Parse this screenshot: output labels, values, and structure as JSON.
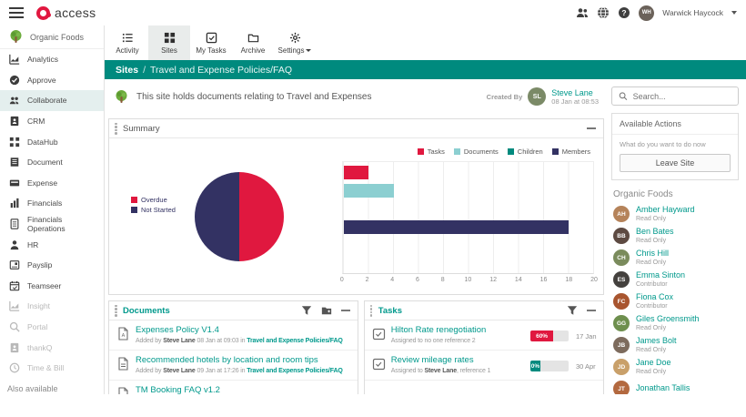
{
  "topbar": {
    "logo_text": "access",
    "user_name": "Warwick Haycock"
  },
  "org": {
    "name": "Organic Foods"
  },
  "sidebar": {
    "items": [
      {
        "label": "Analytics"
      },
      {
        "label": "Approve"
      },
      {
        "label": "Collaborate",
        "active": true
      },
      {
        "label": "CRM"
      },
      {
        "label": "DataHub"
      },
      {
        "label": "Document"
      },
      {
        "label": "Expense"
      },
      {
        "label": "Financials"
      },
      {
        "label": "Financials Operations"
      },
      {
        "label": "HR"
      },
      {
        "label": "Payslip"
      },
      {
        "label": "Teamseer"
      },
      {
        "label": "Insight",
        "muted": true
      },
      {
        "label": "Portal",
        "muted": true
      },
      {
        "label": "thankQ",
        "muted": true
      },
      {
        "label": "Time & Bill",
        "muted": true
      }
    ],
    "also_available": "Also available"
  },
  "toolbar": {
    "tabs": [
      {
        "label": "Activity"
      },
      {
        "label": "Sites",
        "active": true
      },
      {
        "label": "My Tasks"
      },
      {
        "label": "Archive"
      },
      {
        "label": "Settings",
        "has_caret": true
      }
    ]
  },
  "breadcrumb": {
    "section": "Sites",
    "separator": "/",
    "current": "Travel and Expense Policies/FAQ"
  },
  "site_header": {
    "description": "This site holds documents relating to Travel and Expenses",
    "created_by_label": "Created By",
    "creator": "Steve Lane",
    "created_at": "08 Jan at 08:53"
  },
  "summary": {
    "title": "Summary"
  },
  "chart_data": [
    {
      "type": "pie",
      "legend_position": "left",
      "slices": [
        {
          "label": "Overdue",
          "value": 50,
          "color": "#e0183f"
        },
        {
          "label": "Not Started",
          "value": 50,
          "color": "#333263"
        }
      ]
    },
    {
      "type": "bar",
      "orientation": "horizontal",
      "categories": [
        "Tasks",
        "Documents",
        "Children",
        "Members"
      ],
      "values": [
        2,
        4,
        0,
        18
      ],
      "colors": [
        "#e0183f",
        "#8ccfd1",
        "#008a7e",
        "#333263"
      ],
      "xlim": [
        0,
        20
      ],
      "xticks": [
        0,
        2,
        4,
        6,
        8,
        10,
        12,
        14,
        16,
        18,
        20
      ],
      "legend_position": "top",
      "grid": true
    }
  ],
  "documents": {
    "title": "Documents",
    "items": [
      {
        "title": "Expenses Policy V1.4",
        "added_prefix": "Added by",
        "author": "Steve Lane",
        "when": "08 Jan at 09:03",
        "in_word": "in",
        "location": "Travel and Expense Policies/FAQ"
      },
      {
        "title": "Recommended hotels by location and room tips",
        "added_prefix": "Added by",
        "author": "Steve Lane",
        "when": "09 Jan at 17:26",
        "in_word": "in",
        "location": "Travel and Expense Policies/FAQ"
      },
      {
        "title": "TM Booking FAQ v1.2"
      }
    ]
  },
  "tasks": {
    "title": "Tasks",
    "items": [
      {
        "title": "Hilton Rate renegotiation",
        "assigned": "Assigned to no one reference 2",
        "progress": 60,
        "progress_label": "60%",
        "progress_color": "#e0183f",
        "due": "17 Jan"
      },
      {
        "title": "Review mileage rates",
        "assigned_prefix": "Assigned to ",
        "assigned_name": "Steve Lane",
        "assigned_suffix": ", reference 1",
        "progress": 0,
        "progress_label": "0%",
        "progress_color": "#008a7e",
        "due": "30 Apr"
      }
    ]
  },
  "right": {
    "search_placeholder": "Search...",
    "available_actions_title": "Available Actions",
    "prompt": "What do you want to do now",
    "leave_button": "Leave Site",
    "group_title": "Organic Foods",
    "members": [
      {
        "name": "Amber Hayward",
        "role": "Read Only"
      },
      {
        "name": "Ben Bates",
        "role": "Read Only"
      },
      {
        "name": "Chris Hill",
        "role": "Read Only"
      },
      {
        "name": "Emma Sinton",
        "role": "Contributor"
      },
      {
        "name": "Fiona Cox",
        "role": "Contributor"
      },
      {
        "name": "Giles Groensmith",
        "role": "Read Only"
      },
      {
        "name": "James Bolt",
        "role": "Read Only"
      },
      {
        "name": "Jane Doe",
        "role": "Read Only"
      },
      {
        "name": "Jonathan Tallis",
        "role": ""
      }
    ]
  }
}
